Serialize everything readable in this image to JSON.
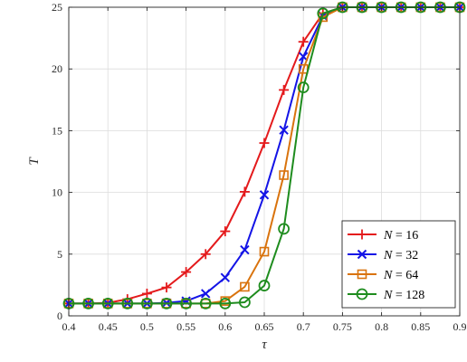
{
  "chart_data": {
    "type": "line",
    "xlabel": "τ",
    "ylabel": "T",
    "xlim": [
      0.4,
      0.9
    ],
    "ylim": [
      0,
      25
    ],
    "grid": true,
    "legend_position": "bottom-right",
    "x_tick_labels": [
      "0.4",
      "0.45",
      "0.5",
      "0.55",
      "0.6",
      "0.65",
      "0.7",
      "0.75",
      "0.8",
      "0.85",
      "0.9"
    ],
    "y_tick_labels": [
      "0",
      "5",
      "10",
      "15",
      "20",
      "25"
    ],
    "x": [
      0.4,
      0.425,
      0.45,
      0.475,
      0.5,
      0.525,
      0.55,
      0.575,
      0.6,
      0.625,
      0.65,
      0.675,
      0.7,
      0.725,
      0.75,
      0.775,
      0.8,
      0.825,
      0.85,
      0.875,
      0.9
    ],
    "series": [
      {
        "name": "N = 16",
        "legend_var": "N",
        "legend_value": "16",
        "color": "#e41a1c",
        "marker": "plus",
        "values": [
          1.0,
          1.0,
          1.05,
          1.35,
          1.8,
          2.3,
          3.55,
          5.0,
          6.85,
          10.05,
          14.0,
          18.3,
          22.2,
          24.5,
          25,
          25,
          25,
          25,
          25,
          25,
          25
        ]
      },
      {
        "name": "N = 32",
        "legend_var": "N",
        "legend_value": "32",
        "color": "#1414e6",
        "marker": "x",
        "values": [
          1.0,
          1.0,
          1.0,
          1.0,
          1.0,
          1.05,
          1.2,
          1.8,
          3.1,
          5.35,
          9.8,
          15.05,
          21.0,
          24.3,
          25,
          25,
          25,
          25,
          25,
          25,
          25
        ]
      },
      {
        "name": "N = 64",
        "legend_var": "N",
        "legend_value": "64",
        "color": "#d9730d",
        "marker": "square",
        "values": [
          1.0,
          1.0,
          1.0,
          1.0,
          1.0,
          1.0,
          1.0,
          1.0,
          1.2,
          2.35,
          5.2,
          11.4,
          20.0,
          24.2,
          25,
          25,
          25,
          25,
          25,
          25,
          25
        ]
      },
      {
        "name": "N = 128",
        "legend_var": "N",
        "legend_value": "128",
        "color": "#1e8c1e",
        "marker": "circle",
        "values": [
          1.0,
          1.0,
          1.0,
          1.0,
          1.0,
          1.0,
          1.0,
          1.0,
          1.0,
          1.1,
          2.45,
          7.05,
          18.5,
          24.5,
          25,
          25,
          25,
          25,
          25,
          25,
          25
        ]
      }
    ]
  }
}
